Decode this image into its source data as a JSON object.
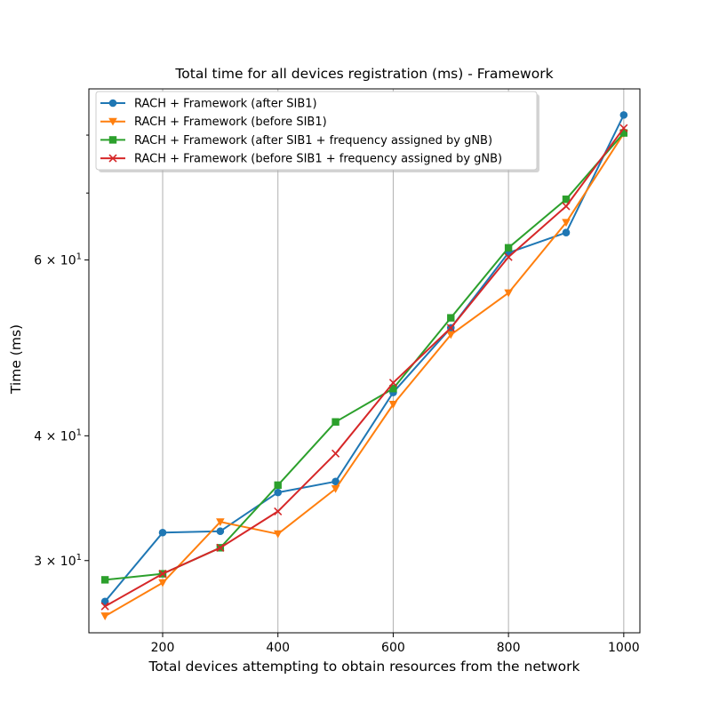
{
  "chart_data": {
    "type": "line",
    "title": "Total time for all devices registration (ms) - Framework",
    "xlabel": "Total devices attempting to obtain resources from the network",
    "ylabel": "Time (ms)",
    "yscale": "log",
    "xlim": [
      72,
      1028
    ],
    "ylim": [
      25.4,
      89.0
    ],
    "xticks": [
      200,
      400,
      600,
      800,
      1000
    ],
    "xtick_labels": [
      "200",
      "400",
      "600",
      "800",
      "1000"
    ],
    "yticks": [
      30,
      40,
      60
    ],
    "ytick_labels": [
      {
        "base": "3",
        "mult": "×",
        "ten": "10",
        "exp": "1"
      },
      {
        "base": "4",
        "mult": "×",
        "ten": "10",
        "exp": "1"
      },
      {
        "base": "6",
        "mult": "×",
        "ten": "10",
        "exp": "1"
      }
    ],
    "minor_yticks": [
      70,
      80
    ],
    "grid": "x-major",
    "legend_placement": "upper-left",
    "x": [
      100,
      200,
      300,
      400,
      500,
      600,
      700,
      800,
      900,
      1000
    ],
    "series": [
      {
        "name": "RACH + Framework (after SIB1)",
        "color": "#1f77b4",
        "marker": "circle",
        "values": [
          27.3,
          32.0,
          32.1,
          35.1,
          36.0,
          44.2,
          51.3,
          61.0,
          63.9,
          83.8
        ]
      },
      {
        "name": "RACH + Framework (before SIB1)",
        "color": "#ff7f0e",
        "marker": "triangle-down",
        "values": [
          26.4,
          28.5,
          32.8,
          31.9,
          35.4,
          43.0,
          50.5,
          55.6,
          65.4,
          80.3
        ]
      },
      {
        "name": "RACH + Framework (after SIB1 + frequency assigned by gNB)",
        "color": "#2ca02c",
        "marker": "square",
        "values": [
          28.7,
          29.1,
          30.9,
          35.7,
          41.3,
          44.6,
          52.5,
          61.7,
          69.0,
          80.4
        ]
      },
      {
        "name": "RACH + Framework (before SIB1 + frequency assigned by gNB)",
        "color": "#d62728",
        "marker": "x",
        "values": [
          27.0,
          29.1,
          30.9,
          33.6,
          38.4,
          45.2,
          51.3,
          60.4,
          67.9,
          81.3
        ]
      }
    ]
  }
}
